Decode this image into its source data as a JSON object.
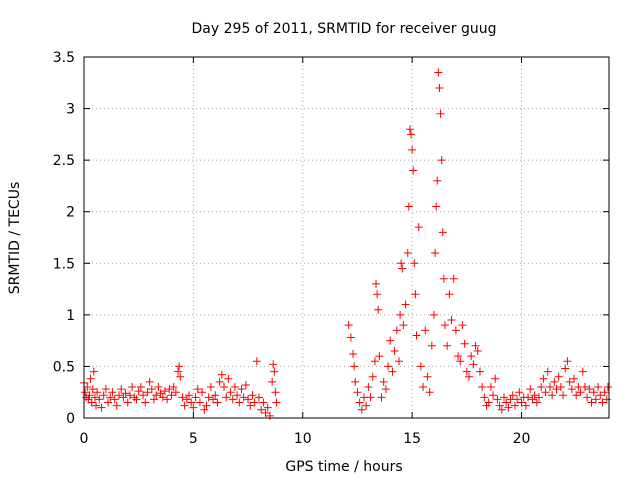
{
  "chart_data": {
    "type": "scatter",
    "title": "Day 295 of 2011, SRMTID for receiver guug",
    "xlabel": "GPS time / hours",
    "ylabel": "SRMTID / TECUs",
    "xlim": [
      0,
      24
    ],
    "ylim": [
      0,
      3.5
    ],
    "x_ticks": [
      {
        "value": 0,
        "label": "0"
      },
      {
        "value": 5,
        "label": "5"
      },
      {
        "value": 10,
        "label": "10"
      },
      {
        "value": 15,
        "label": "15"
      },
      {
        "value": 20,
        "label": "20"
      }
    ],
    "y_ticks": [
      {
        "value": 0,
        "label": "0"
      },
      {
        "value": 0.5,
        "label": "0.5"
      },
      {
        "value": 1,
        "label": "1"
      },
      {
        "value": 1.5,
        "label": "1.5"
      },
      {
        "value": 2,
        "label": "2"
      },
      {
        "value": 2.5,
        "label": "2.5"
      },
      {
        "value": 3,
        "label": "3"
      },
      {
        "value": 3.5,
        "label": "3.5"
      }
    ],
    "grid": true,
    "marker": "plus",
    "series": [
      {
        "name": "SRMTID",
        "color": "#ff0000",
        "points": [
          [
            0.0,
            0.34
          ],
          [
            0.05,
            0.25
          ],
          [
            0.1,
            0.2
          ],
          [
            0.15,
            0.3
          ],
          [
            0.2,
            0.18
          ],
          [
            0.25,
            0.22
          ],
          [
            0.3,
            0.38
          ],
          [
            0.35,
            0.15
          ],
          [
            0.4,
            0.28
          ],
          [
            0.45,
            0.45
          ],
          [
            0.5,
            0.2
          ],
          [
            0.55,
            0.12
          ],
          [
            0.6,
            0.25
          ],
          [
            0.7,
            0.18
          ],
          [
            0.8,
            0.1
          ],
          [
            0.9,
            0.22
          ],
          [
            1.0,
            0.28
          ],
          [
            1.1,
            0.15
          ],
          [
            1.2,
            0.2
          ],
          [
            1.3,
            0.25
          ],
          [
            1.4,
            0.18
          ],
          [
            1.5,
            0.12
          ],
          [
            1.6,
            0.22
          ],
          [
            1.7,
            0.28
          ],
          [
            1.8,
            0.2
          ],
          [
            1.9,
            0.24
          ],
          [
            2.0,
            0.15
          ],
          [
            2.1,
            0.22
          ],
          [
            2.2,
            0.3
          ],
          [
            2.3,
            0.2
          ],
          [
            2.4,
            0.18
          ],
          [
            2.5,
            0.26
          ],
          [
            2.6,
            0.3
          ],
          [
            2.7,
            0.22
          ],
          [
            2.8,
            0.15
          ],
          [
            2.9,
            0.25
          ],
          [
            3.0,
            0.35
          ],
          [
            3.1,
            0.28
          ],
          [
            3.2,
            0.18
          ],
          [
            3.3,
            0.22
          ],
          [
            3.4,
            0.3
          ],
          [
            3.5,
            0.24
          ],
          [
            3.6,
            0.2
          ],
          [
            3.7,
            0.26
          ],
          [
            3.8,
            0.18
          ],
          [
            3.9,
            0.28
          ],
          [
            4.0,
            0.22
          ],
          [
            4.1,
            0.3
          ],
          [
            4.2,
            0.25
          ],
          [
            4.3,
            0.45
          ],
          [
            4.35,
            0.5
          ],
          [
            4.4,
            0.4
          ],
          [
            4.5,
            0.2
          ],
          [
            4.6,
            0.12
          ],
          [
            4.7,
            0.18
          ],
          [
            4.8,
            0.22
          ],
          [
            4.9,
            0.15
          ],
          [
            5.0,
            0.1
          ],
          [
            5.1,
            0.2
          ],
          [
            5.2,
            0.28
          ],
          [
            5.3,
            0.15
          ],
          [
            5.4,
            0.25
          ],
          [
            5.5,
            0.08
          ],
          [
            5.6,
            0.12
          ],
          [
            5.7,
            0.2
          ],
          [
            5.8,
            0.3
          ],
          [
            5.9,
            0.18
          ],
          [
            6.0,
            0.22
          ],
          [
            6.1,
            0.15
          ],
          [
            6.2,
            0.35
          ],
          [
            6.3,
            0.42
          ],
          [
            6.4,
            0.3
          ],
          [
            6.5,
            0.2
          ],
          [
            6.6,
            0.38
          ],
          [
            6.7,
            0.25
          ],
          [
            6.8,
            0.18
          ],
          [
            6.9,
            0.3
          ],
          [
            7.0,
            0.22
          ],
          [
            7.1,
            0.15
          ],
          [
            7.2,
            0.28
          ],
          [
            7.3,
            0.2
          ],
          [
            7.4,
            0.32
          ],
          [
            7.5,
            0.18
          ],
          [
            7.6,
            0.12
          ],
          [
            7.7,
            0.22
          ],
          [
            7.8,
            0.15
          ],
          [
            7.9,
            0.55
          ],
          [
            8.0,
            0.2
          ],
          [
            8.1,
            0.08
          ],
          [
            8.2,
            0.15
          ],
          [
            8.3,
            0.05
          ],
          [
            8.4,
            0.1
          ],
          [
            8.5,
            0.02
          ],
          [
            8.6,
            0.35
          ],
          [
            8.65,
            0.52
          ],
          [
            8.7,
            0.45
          ],
          [
            8.75,
            0.25
          ],
          [
            8.8,
            0.15
          ],
          [
            12.1,
            0.9
          ],
          [
            12.2,
            0.78
          ],
          [
            12.3,
            0.62
          ],
          [
            12.35,
            0.5
          ],
          [
            12.4,
            0.35
          ],
          [
            12.5,
            0.25
          ],
          [
            12.6,
            0.15
          ],
          [
            12.7,
            0.08
          ],
          [
            12.8,
            0.2
          ],
          [
            12.9,
            0.12
          ],
          [
            13.0,
            0.3
          ],
          [
            13.1,
            0.2
          ],
          [
            13.2,
            0.4
          ],
          [
            13.3,
            0.55
          ],
          [
            13.35,
            1.3
          ],
          [
            13.4,
            1.2
          ],
          [
            13.45,
            1.05
          ],
          [
            13.5,
            0.6
          ],
          [
            13.6,
            0.2
          ],
          [
            13.7,
            0.35
          ],
          [
            13.8,
            0.28
          ],
          [
            13.9,
            0.5
          ],
          [
            14.0,
            0.75
          ],
          [
            14.1,
            0.45
          ],
          [
            14.2,
            0.65
          ],
          [
            14.3,
            0.85
          ],
          [
            14.4,
            0.55
          ],
          [
            14.45,
            1.0
          ],
          [
            14.5,
            1.5
          ],
          [
            14.55,
            1.45
          ],
          [
            14.6,
            0.9
          ],
          [
            14.7,
            1.1
          ],
          [
            14.8,
            1.6
          ],
          [
            14.85,
            2.05
          ],
          [
            14.9,
            2.8
          ],
          [
            14.95,
            2.75
          ],
          [
            15.0,
            2.6
          ],
          [
            15.05,
            2.4
          ],
          [
            15.1,
            1.5
          ],
          [
            15.15,
            1.2
          ],
          [
            15.2,
            0.8
          ],
          [
            15.3,
            1.85
          ],
          [
            15.4,
            0.5
          ],
          [
            15.5,
            0.3
          ],
          [
            15.6,
            0.85
          ],
          [
            15.7,
            0.4
          ],
          [
            15.8,
            0.25
          ],
          [
            15.9,
            0.7
          ],
          [
            16.0,
            1.0
          ],
          [
            16.05,
            1.6
          ],
          [
            16.1,
            2.05
          ],
          [
            16.15,
            2.3
          ],
          [
            16.2,
            3.35
          ],
          [
            16.25,
            3.2
          ],
          [
            16.3,
            2.95
          ],
          [
            16.35,
            2.5
          ],
          [
            16.4,
            1.8
          ],
          [
            16.45,
            1.35
          ],
          [
            16.5,
            0.9
          ],
          [
            16.6,
            0.7
          ],
          [
            16.7,
            1.2
          ],
          [
            16.8,
            0.95
          ],
          [
            16.9,
            1.35
          ],
          [
            17.0,
            0.85
          ],
          [
            17.1,
            0.6
          ],
          [
            17.2,
            0.55
          ],
          [
            17.3,
            0.9
          ],
          [
            17.4,
            0.72
          ],
          [
            17.5,
            0.45
          ],
          [
            17.6,
            0.4
          ],
          [
            17.7,
            0.6
          ],
          [
            17.8,
            0.52
          ],
          [
            17.9,
            0.7
          ],
          [
            18.0,
            0.65
          ],
          [
            18.1,
            0.45
          ],
          [
            18.2,
            0.3
          ],
          [
            18.3,
            0.2
          ],
          [
            18.4,
            0.12
          ],
          [
            18.5,
            0.15
          ],
          [
            18.6,
            0.3
          ],
          [
            18.7,
            0.22
          ],
          [
            18.8,
            0.38
          ],
          [
            18.9,
            0.18
          ],
          [
            19.0,
            0.12
          ],
          [
            19.1,
            0.08
          ],
          [
            19.2,
            0.2
          ],
          [
            19.3,
            0.15
          ],
          [
            19.4,
            0.1
          ],
          [
            19.5,
            0.18
          ],
          [
            19.6,
            0.22
          ],
          [
            19.7,
            0.12
          ],
          [
            19.8,
            0.18
          ],
          [
            19.9,
            0.25
          ],
          [
            20.0,
            0.15
          ],
          [
            20.1,
            0.2
          ],
          [
            20.2,
            0.12
          ],
          [
            20.3,
            0.2
          ],
          [
            20.4,
            0.28
          ],
          [
            20.5,
            0.18
          ],
          [
            20.6,
            0.22
          ],
          [
            20.7,
            0.15
          ],
          [
            20.8,
            0.2
          ],
          [
            20.9,
            0.3
          ],
          [
            21.0,
            0.38
          ],
          [
            21.1,
            0.25
          ],
          [
            21.2,
            0.45
          ],
          [
            21.3,
            0.3
          ],
          [
            21.4,
            0.22
          ],
          [
            21.5,
            0.35
          ],
          [
            21.6,
            0.28
          ],
          [
            21.7,
            0.4
          ],
          [
            21.8,
            0.3
          ],
          [
            21.9,
            0.22
          ],
          [
            22.0,
            0.48
          ],
          [
            22.1,
            0.55
          ],
          [
            22.2,
            0.35
          ],
          [
            22.3,
            0.28
          ],
          [
            22.4,
            0.38
          ],
          [
            22.5,
            0.22
          ],
          [
            22.6,
            0.3
          ],
          [
            22.7,
            0.25
          ],
          [
            22.8,
            0.45
          ],
          [
            22.9,
            0.3
          ],
          [
            23.0,
            0.2
          ],
          [
            23.1,
            0.28
          ],
          [
            23.2,
            0.15
          ],
          [
            23.3,
            0.25
          ],
          [
            23.4,
            0.18
          ],
          [
            23.5,
            0.3
          ],
          [
            23.6,
            0.22
          ],
          [
            23.7,
            0.15
          ],
          [
            23.8,
            0.25
          ],
          [
            23.9,
            0.18
          ],
          [
            23.95,
            0.3
          ]
        ]
      }
    ]
  }
}
